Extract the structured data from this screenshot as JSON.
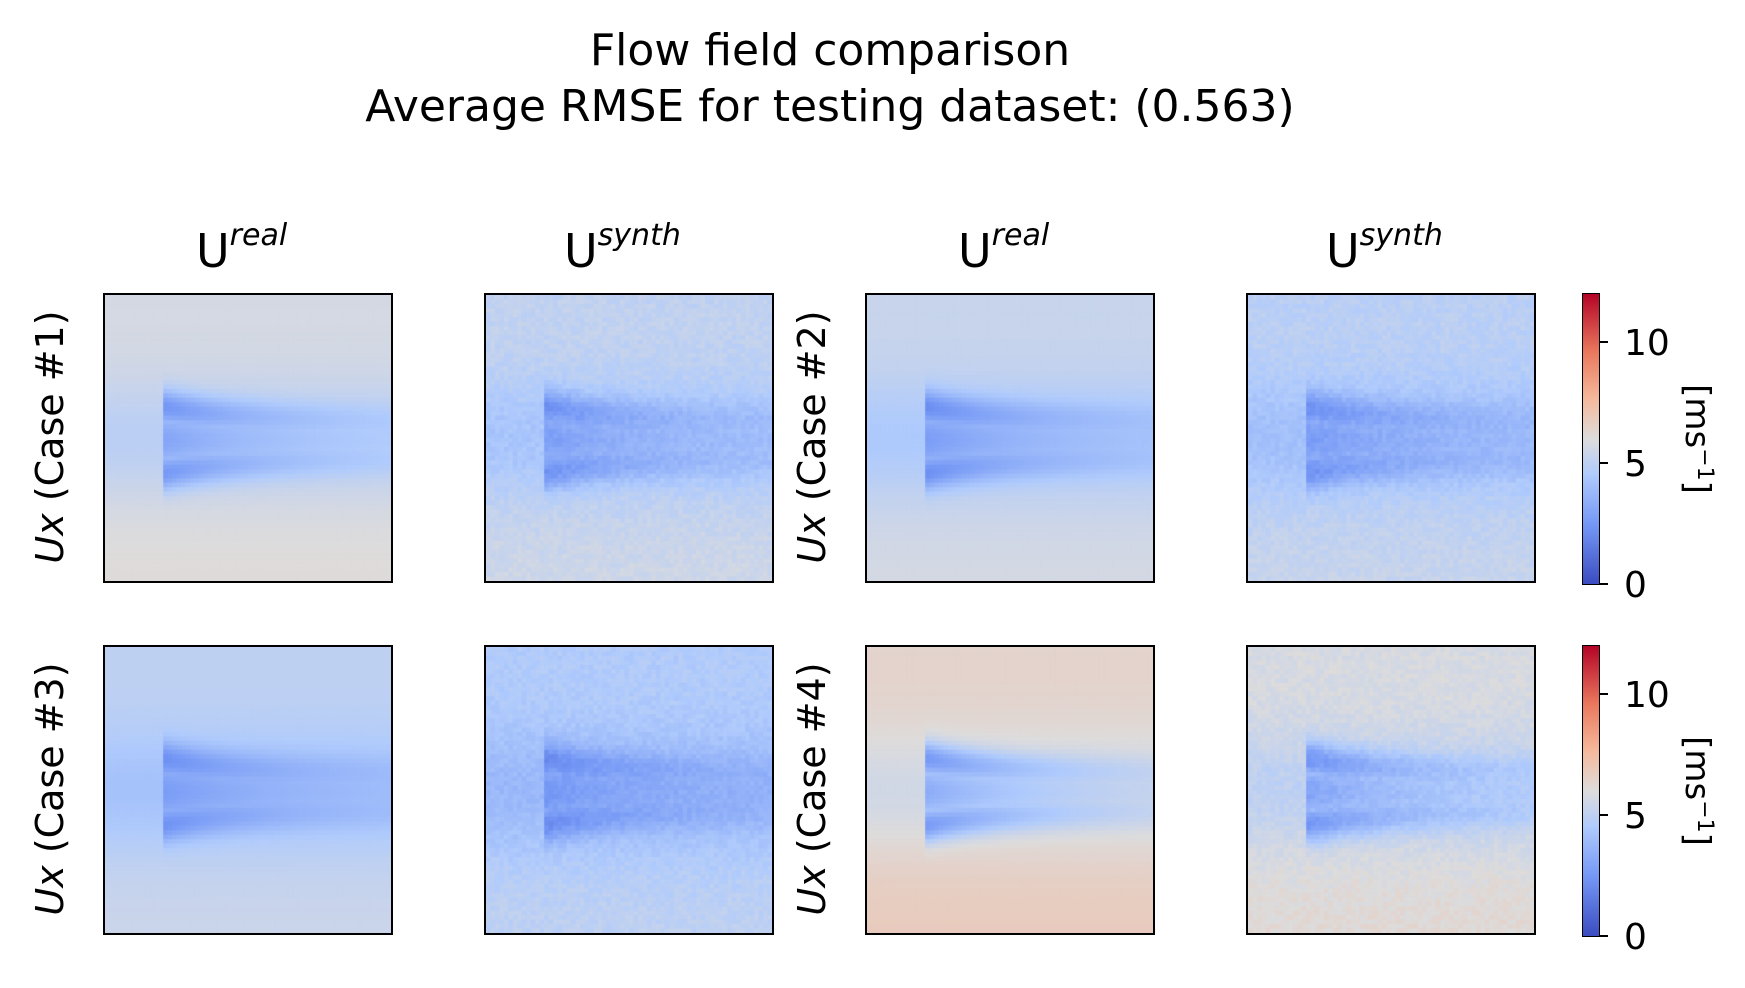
{
  "title_line1": "Flow field comparison",
  "title_line2": "Average RMSE for testing dataset: (0.563)",
  "columns": [
    {
      "base": "U",
      "sup": "real"
    },
    {
      "base": "U",
      "sup": "synth"
    },
    {
      "base": "U",
      "sup": "real"
    },
    {
      "base": "U",
      "sup": "synth"
    }
  ],
  "row_labels": [
    {
      "var": "Ux",
      "case": " (Case #1)"
    },
    {
      "var": "Ux",
      "case": " (Case #2)"
    },
    {
      "var": "Ux",
      "case": " (Case #3)"
    },
    {
      "var": "Ux",
      "case": " (Case #4)"
    }
  ],
  "colorbar": {
    "unit_base": "[ms",
    "unit_sup": "−1",
    "unit_close": "]",
    "ticks": [
      "0",
      "5",
      "10"
    ],
    "range": [
      0,
      12
    ],
    "colormap": "coolwarm"
  },
  "chart_data": {
    "type": "heatmap",
    "colormap": "coolwarm",
    "value_range": [
      0,
      12
    ],
    "panels": [
      {
        "case": "Case #1",
        "field": "U real",
        "background": 5.9,
        "wake": 3.2
      },
      {
        "case": "Case #1",
        "field": "U synth",
        "background": 5.3,
        "wake": 3.0
      },
      {
        "case": "Case #2",
        "field": "U real",
        "background": 5.5,
        "wake": 2.9
      },
      {
        "case": "Case #2",
        "field": "U synth",
        "background": 5.1,
        "wake": 3.0
      },
      {
        "case": "Case #3",
        "field": "U real",
        "background": 5.2,
        "wake": 3.0
      },
      {
        "case": "Case #3",
        "field": "U synth",
        "background": 4.8,
        "wake": 2.8
      },
      {
        "case": "Case #4",
        "field": "U real",
        "background": 6.6,
        "wake": 3.3
      },
      {
        "case": "Case #4",
        "field": "U synth",
        "background": 6.0,
        "wake": 3.1
      }
    ]
  }
}
